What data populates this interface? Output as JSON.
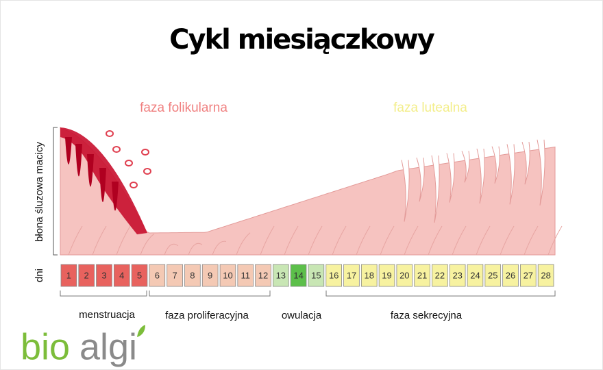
{
  "title": "Cykl miesiączkowy",
  "phases": {
    "follicular": "faza folikularna",
    "luteal": "faza lutealna"
  },
  "axis_label": "błona śluzowa macicy",
  "days_label": "dni",
  "days": [
    {
      "day": 1,
      "color": "#e8625e"
    },
    {
      "day": 2,
      "color": "#e8625e"
    },
    {
      "day": 3,
      "color": "#e8625e"
    },
    {
      "day": 4,
      "color": "#e8625e"
    },
    {
      "day": 5,
      "color": "#e8625e"
    },
    {
      "day": 6,
      "color": "#f4c9b4"
    },
    {
      "day": 7,
      "color": "#f4c9b4"
    },
    {
      "day": 8,
      "color": "#f4c9b4"
    },
    {
      "day": 9,
      "color": "#f4c9b4"
    },
    {
      "day": 10,
      "color": "#f4c9b4"
    },
    {
      "day": 11,
      "color": "#f4c9b4"
    },
    {
      "day": 12,
      "color": "#f4c9b4"
    },
    {
      "day": 13,
      "color": "#c8e6b4"
    },
    {
      "day": 14,
      "color": "#5cbf4a"
    },
    {
      "day": 15,
      "color": "#c8e6b4"
    },
    {
      "day": 16,
      "color": "#f7f2a0"
    },
    {
      "day": 17,
      "color": "#f7f2a0"
    },
    {
      "day": 18,
      "color": "#f7f2a0"
    },
    {
      "day": 19,
      "color": "#f7f2a0"
    },
    {
      "day": 20,
      "color": "#f7f2a0"
    },
    {
      "day": 21,
      "color": "#f7f2a0"
    },
    {
      "day": 22,
      "color": "#f7f2a0"
    },
    {
      "day": 23,
      "color": "#f7f2a0"
    },
    {
      "day": 24,
      "color": "#f7f2a0"
    },
    {
      "day": 25,
      "color": "#f7f2a0"
    },
    {
      "day": 26,
      "color": "#f7f2a0"
    },
    {
      "day": 27,
      "color": "#f7f2a0"
    },
    {
      "day": 28,
      "color": "#f7f2a0"
    }
  ],
  "bottom_labels": [
    "menstruacja",
    "faza proliferacyjna",
    "owulacja",
    "faza sekrecyjna"
  ],
  "logo": {
    "bio": "bio",
    "algi": "algi"
  }
}
